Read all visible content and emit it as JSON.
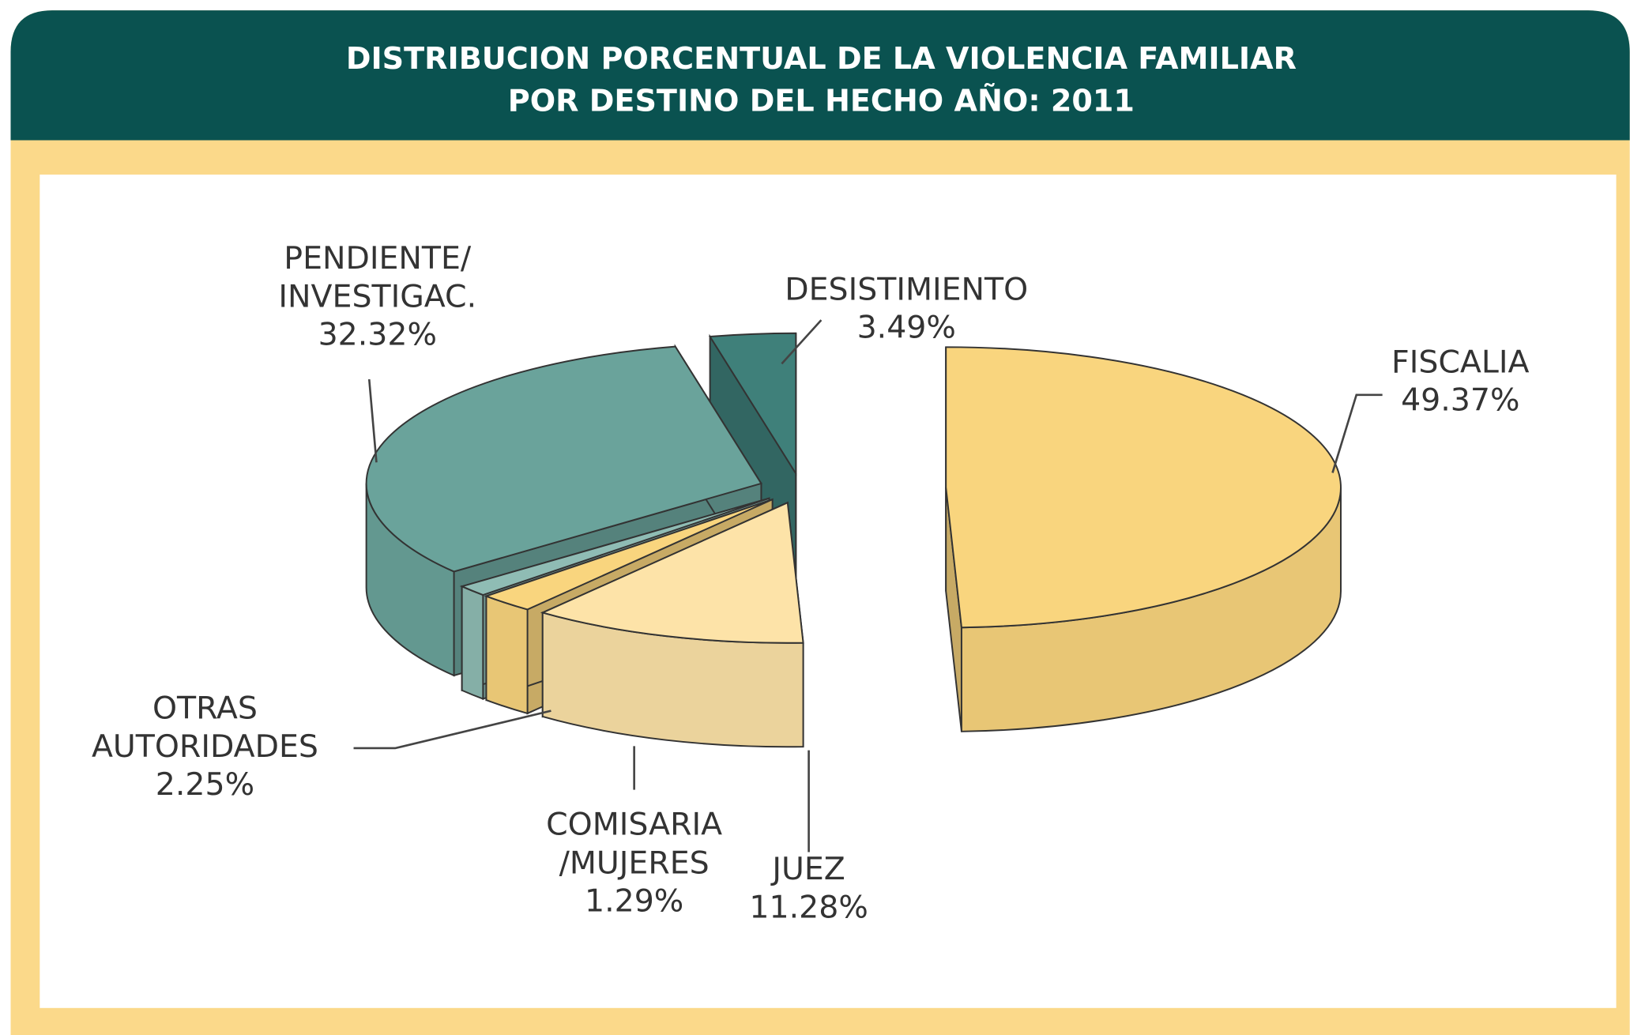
{
  "chart_data": {
    "type": "pie3d",
    "title": "DISTRIBUCION PORCENTUAL DE LA VIOLENCIA FAMILIAR",
    "subtitle": "POR DESTINO DEL HECHO AÑO: 2011",
    "categories": [
      "FISCALIA",
      "JUEZ",
      "OTRAS AUTORIDADES",
      "COMISARIA /MUJERES",
      "PENDIENTE/ INVESTIGAC.",
      "DESISTIMIENTO"
    ],
    "values": [
      49.37,
      11.28,
      2.25,
      1.29,
      32.32,
      3.49
    ],
    "value_labels": [
      "49.37%",
      "11.28%",
      "2.25%",
      "1.29%",
      "32.32%",
      "3.49%"
    ],
    "colors": [
      "#f9d57e",
      "#fde3a8",
      "#f9d57e",
      "#8fbcb4",
      "#6aa39b",
      "#3f807a"
    ]
  }
}
